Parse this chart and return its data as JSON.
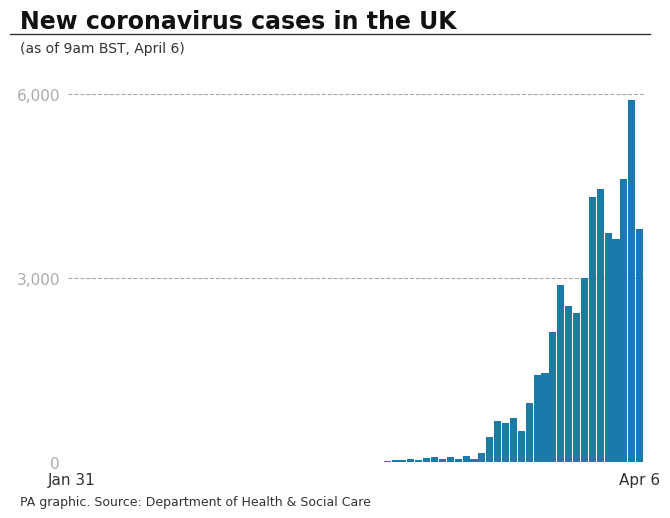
{
  "title": "New coronavirus cases in the UK",
  "subtitle": "(as of 9am BST, April 6)",
  "source": "PA graphic. Source: Department of Health & Social Care",
  "xlabel_left": "Jan 31",
  "xlabel_right": "Apr 6",
  "ylim": [
    0,
    6500
  ],
  "yticks": [
    0,
    3000,
    6000
  ],
  "bar_color": "#1a7aaa",
  "background_color": "#ffffff",
  "values": [
    2,
    1,
    0,
    0,
    0,
    0,
    0,
    0,
    0,
    0,
    0,
    0,
    0,
    0,
    0,
    0,
    0,
    0,
    0,
    0,
    0,
    0,
    0,
    0,
    0,
    0,
    2,
    2,
    0,
    3,
    0,
    0,
    1,
    8,
    2,
    3,
    2,
    5,
    8,
    2,
    13,
    35,
    29,
    48,
    43,
    62,
    83,
    53,
    80,
    56,
    93,
    51,
    152,
    407,
    676,
    643,
    714,
    501,
    967,
    1427,
    1452,
    2129,
    2885,
    2546,
    2433,
    3009,
    4324,
    4450,
    3735,
    3634,
    4617,
    5903,
    3802
  ]
}
